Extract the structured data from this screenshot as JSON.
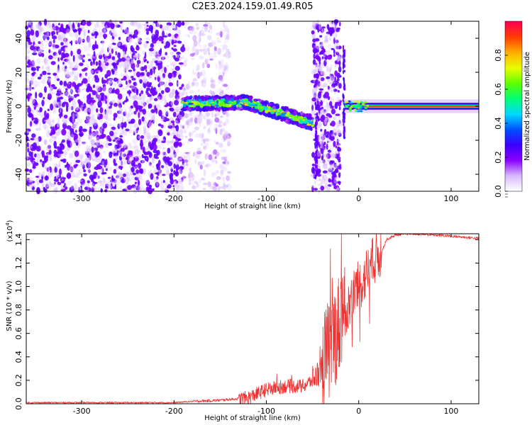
{
  "title": "C2E3.2024.159.01.49.R05",
  "chart_data": [
    {
      "type": "heatmap",
      "title": "",
      "xlabel": "Height of straight line (km)",
      "ylabel": "Frequency (Hz)",
      "xlim": [
        -360,
        130
      ],
      "ylim": [
        -50,
        50
      ],
      "x_ticks": [
        -300,
        -200,
        -100,
        0,
        100
      ],
      "y_ticks": [
        -40,
        -20,
        0,
        20,
        40
      ],
      "colorbar": {
        "label": "Normalized spectral amplitude",
        "range": [
          0,
          1
        ],
        "ticks": [
          "0.0",
          "0.2",
          "0.4",
          "0.6",
          "0.8"
        ],
        "colors": [
          "#ffffff",
          "#d6b8ff",
          "#8a00ff",
          "#3c00ff",
          "#0050ff",
          "#00d8ff",
          "#00ff7a",
          "#5cff00",
          "#e8ff00",
          "#ffb000",
          "#ff4000",
          "#ff0050"
        ]
      },
      "features": [
        {
          "x_range": [
            -360,
            -190
          ],
          "pattern": "broadband noise",
          "freq_range": [
            -50,
            50
          ]
        },
        {
          "x_range": [
            -190,
            -140
          ],
          "pattern": "sparse broadband noise",
          "freq_range": [
            -50,
            50
          ]
        },
        {
          "x_range": [
            -190,
            -50
          ],
          "pattern": "strong signal band near 0 Hz, drifting to about -10 Hz",
          "freq_range": [
            -12,
            8
          ]
        },
        {
          "x_range": [
            -50,
            -18
          ],
          "pattern": "broadband noise",
          "freq_range": [
            -50,
            50
          ]
        },
        {
          "x_range": [
            -15,
            130
          ],
          "pattern": "narrow carrier at 0 Hz",
          "freq_range": [
            -3,
            3
          ]
        }
      ]
    },
    {
      "type": "line",
      "title": "",
      "xlabel": "Height of straight line (km)",
      "ylabel": "SNR (10 * v/v)",
      "y_scale_note": "(x10^4)",
      "xlim": [
        -360,
        130
      ],
      "ylim": [
        0,
        1.45
      ],
      "x_ticks": [
        -300,
        -200,
        -100,
        0,
        100
      ],
      "y_ticks": [
        "0.0",
        "0.2",
        "0.4",
        "0.6",
        "0.8",
        "1.0",
        "1.2",
        "1.4"
      ],
      "series": [
        {
          "color": "#ee3333",
          "x": [
            -360,
            -300,
            -250,
            -200,
            -180,
            -150,
            -120,
            -100,
            -80,
            -60,
            -50,
            -40,
            -30,
            -25,
            -20,
            -15,
            -10,
            -5,
            0,
            5,
            10,
            15,
            20,
            25,
            30,
            35,
            40,
            50,
            60,
            80,
            100,
            130
          ],
          "y": [
            0.01,
            0.01,
            0.01,
            0.01,
            0.02,
            0.03,
            0.05,
            0.12,
            0.15,
            0.15,
            0.2,
            0.3,
            0.5,
            0.6,
            0.7,
            0.75,
            0.85,
            0.95,
            1.0,
            1.05,
            1.15,
            1.2,
            1.25,
            1.3,
            1.4,
            1.42,
            1.44,
            1.45,
            1.45,
            1.44,
            1.43,
            1.41
          ]
        }
      ]
    }
  ]
}
